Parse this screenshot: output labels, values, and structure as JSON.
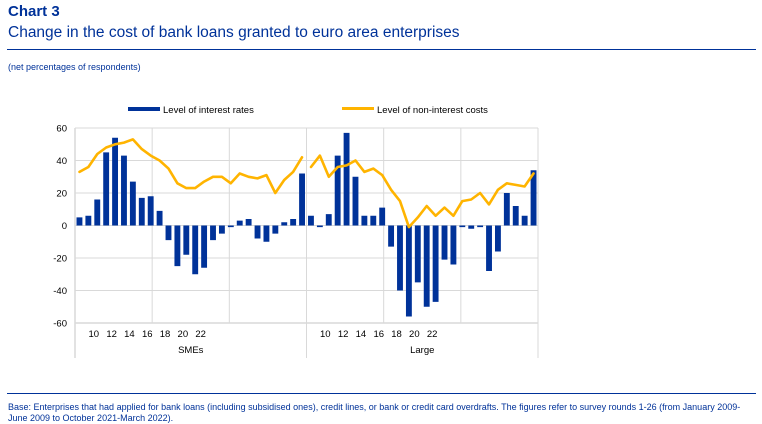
{
  "header": {
    "label": "Chart 3",
    "title": "Change in the cost of bank loans granted to euro area enterprises",
    "units": "(net percentages of respondents)"
  },
  "footer": {
    "note": "Base: Enterprises that had applied for bank loans (including subsidised ones), credit lines, or bank or credit card overdrafts. The figures refer to survey rounds 1-26 (from January 2009-June 2009 to October 2021-March 2022)."
  },
  "colors": {
    "bars": "#003299",
    "line": "#FFB400",
    "grid": "#d9d9d9",
    "text": "#003299",
    "tick_text": "#000000"
  },
  "chart_data": {
    "type": "bar",
    "title": "Change in the cost of bank loans granted to euro area enterprises",
    "ylabel": "net percentages of respondents",
    "ylim": [
      -60,
      60
    ],
    "yticks": [
      -60,
      -40,
      -20,
      0,
      20,
      40,
      60
    ],
    "ytick_labels": [
      "-60",
      "-40",
      "-20",
      "0",
      "20",
      "40",
      "60"
    ],
    "grid": true,
    "legend_position": "top",
    "legend": [
      {
        "name": "Level of interest rates",
        "kind": "bar"
      },
      {
        "name": "Level of non-interest costs",
        "kind": "line"
      }
    ],
    "x": [
      1,
      2,
      3,
      4,
      5,
      6,
      7,
      8,
      9,
      10,
      11,
      12,
      13,
      14,
      15,
      16,
      17,
      18,
      19,
      20,
      21,
      22,
      23,
      24,
      25,
      26
    ],
    "xtick_positions": [
      2,
      4,
      6,
      8,
      10,
      12,
      14
    ],
    "xtick_labels": [
      "10",
      "12",
      "14",
      "16",
      "18",
      "20",
      "22"
    ],
    "panels": [
      {
        "name": "SMEs",
        "series": [
          {
            "name": "Level of interest rates",
            "type": "bar",
            "values": [
              5,
              6,
              16,
              45,
              54,
              43,
              27,
              17,
              18,
              9,
              -9,
              -25,
              -18,
              -30,
              -26,
              -9,
              -5,
              -1,
              3,
              4,
              -8,
              -10,
              -5,
              2,
              4,
              32
            ]
          },
          {
            "name": "Level of non-interest costs",
            "type": "line",
            "values": [
              33,
              36,
              44,
              48,
              50,
              51,
              53,
              47,
              43,
              40,
              35,
              26,
              23,
              23,
              27,
              30,
              30,
              26,
              32,
              30,
              29,
              31,
              20,
              28,
              33,
              42
            ]
          }
        ]
      },
      {
        "name": "Large",
        "series": [
          {
            "name": "Level of interest rates",
            "type": "bar",
            "values": [
              6,
              -1,
              7,
              43,
              57,
              30,
              6,
              6,
              11,
              -13,
              -40,
              -56,
              -35,
              -50,
              -47,
              -21,
              -24,
              -1,
              -2,
              -1,
              -28,
              -16,
              20,
              12,
              6,
              34
            ]
          },
          {
            "name": "Level of non-interest costs",
            "type": "line",
            "values": [
              36,
              43,
              30,
              36,
              37,
              40,
              33,
              35,
              31,
              22,
              15,
              -1,
              5,
              12,
              6,
              11,
              6,
              15,
              16,
              20,
              13,
              22,
              26,
              25,
              24,
              32
            ]
          }
        ]
      }
    ]
  }
}
